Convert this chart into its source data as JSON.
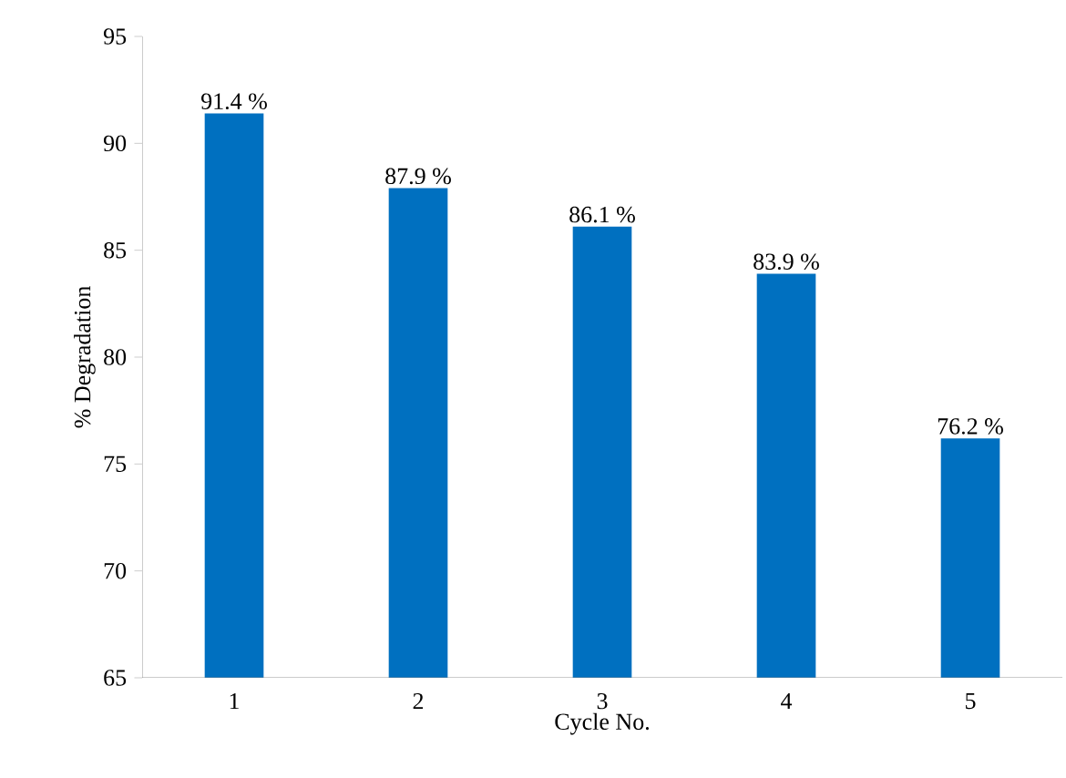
{
  "chart_data": {
    "type": "bar",
    "xlabel": "Cycle No.",
    "ylabel": "% Degradation",
    "categories": [
      "1",
      "2",
      "3",
      "4",
      "5"
    ],
    "values": [
      91.4,
      87.9,
      86.1,
      83.9,
      76.2
    ],
    "value_labels": [
      "91.4 %",
      "87.9 %",
      "86.1 %",
      "83.9 %",
      "76.2 %"
    ],
    "color": "#0070c0",
    "ylim": [
      65,
      95
    ],
    "yticks": [
      65,
      70,
      75,
      80,
      85,
      90,
      95
    ]
  }
}
